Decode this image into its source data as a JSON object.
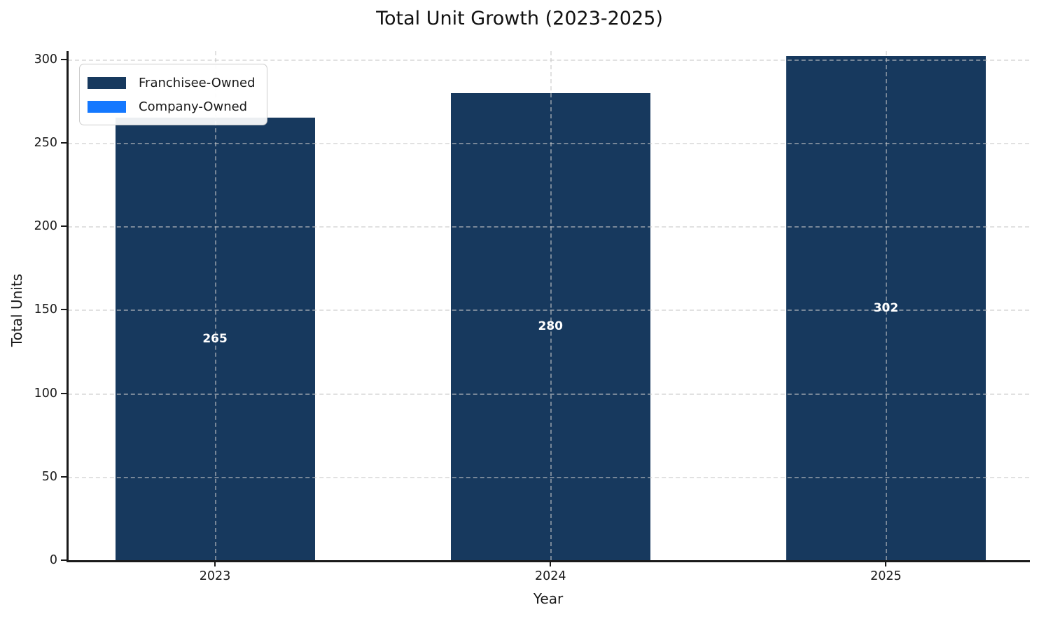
{
  "title": "Total Unit Growth (2023-2025)",
  "chart_data": {
    "type": "bar",
    "stacked": true,
    "title": "Total Unit Growth (2023-2025)",
    "xlabel": "Year",
    "ylabel": "Total Units",
    "categories": [
      "2023",
      "2024",
      "2025"
    ],
    "series": [
      {
        "name": "Franchisee-Owned",
        "color": "#17395E",
        "values": [
          265,
          280,
          302
        ]
      },
      {
        "name": "Company-Owned",
        "color": "#1478FF",
        "values": [
          0,
          0,
          0
        ]
      }
    ],
    "totals": [
      265,
      280,
      302
    ],
    "bar_labels": [
      "265",
      "280",
      "302"
    ],
    "yticks": [
      0,
      50,
      100,
      150,
      200,
      250,
      300
    ],
    "ylim": [
      0,
      305
    ],
    "grid": true,
    "grid_style": "dashed",
    "legend_position": "upper left",
    "legend_entries": [
      "Franchisee-Owned",
      "Company-Owned"
    ]
  },
  "colors": {
    "franchisee": "#17395E",
    "company": "#1478FF",
    "background": "#ffffff",
    "axis": "#1a1a1a",
    "grid": "#c8c8c8",
    "bar_label_text": "#ffffff"
  }
}
